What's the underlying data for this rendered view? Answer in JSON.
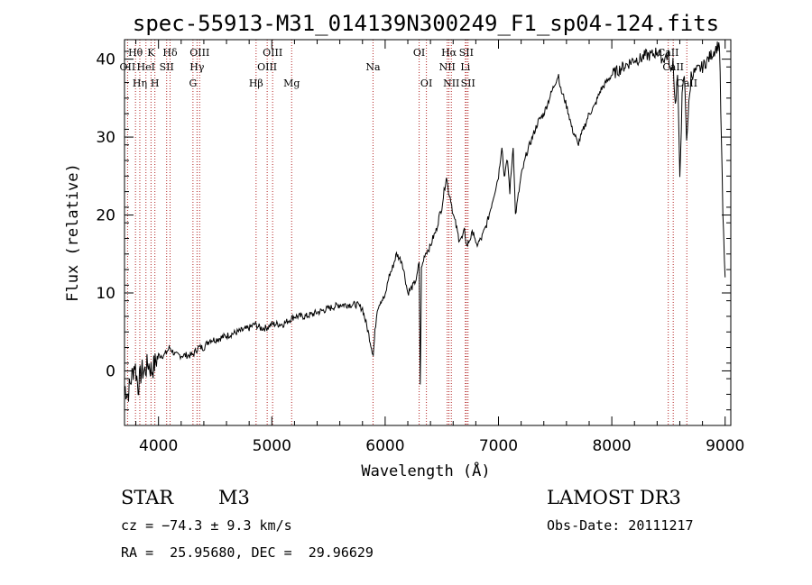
{
  "chart_data": {
    "type": "line",
    "title": "spec-55913-M31_014139N300249_F1_sp04-124.fits",
    "xlabel": "Wavelength (Å)",
    "ylabel": "Flux (relative)",
    "xlim": [
      3700,
      9050
    ],
    "ylim": [
      -7,
      42.5
    ],
    "xticks": [
      4000,
      5000,
      6000,
      7000,
      8000,
      9000
    ],
    "yticks": [
      0,
      10,
      20,
      30,
      40
    ],
    "grid": false,
    "series": [
      {
        "name": "spectrum",
        "x": [
          3700,
          3730,
          3760,
          3790,
          3820,
          3850,
          3880,
          3910,
          3940,
          3970,
          4000,
          4050,
          4100,
          4150,
          4200,
          4250,
          4300,
          4350,
          4400,
          4450,
          4500,
          4600,
          4700,
          4800,
          4850,
          4900,
          4950,
          5000,
          5050,
          5100,
          5150,
          5200,
          5300,
          5400,
          5500,
          5600,
          5700,
          5750,
          5800,
          5850,
          5880,
          5895,
          5910,
          5930,
          5960,
          6000,
          6030,
          6060,
          6100,
          6150,
          6200,
          6250,
          6280,
          6300,
          6310,
          6320,
          6350,
          6400,
          6420,
          6450,
          6480,
          6500,
          6520,
          6540,
          6560,
          6580,
          6600,
          6620,
          6650,
          6680,
          6700,
          6720,
          6750,
          6780,
          6800,
          6850,
          6900,
          6950,
          7000,
          7030,
          7050,
          7080,
          7100,
          7130,
          7150,
          7200,
          7250,
          7300,
          7350,
          7400,
          7450,
          7500,
          7530,
          7550,
          7580,
          7600,
          7620,
          7650,
          7680,
          7700,
          7750,
          7800,
          7850,
          7900,
          7950,
          8000,
          8050,
          8100,
          8150,
          8200,
          8250,
          8300,
          8350,
          8400,
          8450,
          8500,
          8520,
          8540,
          8560,
          8580,
          8600,
          8620,
          8640,
          8660,
          8680,
          8700,
          8750,
          8800,
          8850,
          8900,
          8950,
          8980,
          9000
        ],
        "y": [
          -2,
          -3,
          -1,
          1,
          -2,
          0,
          0,
          1,
          0,
          1,
          2,
          2,
          3,
          2,
          2,
          2,
          2,
          3,
          3,
          4,
          4,
          4.5,
          5,
          5.5,
          6,
          5.5,
          5.5,
          6,
          6,
          6,
          6.5,
          7,
          7,
          7.5,
          8,
          8.5,
          8.5,
          8.5,
          8,
          5,
          3,
          2,
          5,
          8,
          9,
          9.5,
          12,
          13,
          15,
          14,
          10,
          11,
          12,
          14,
          -2,
          13,
          15,
          16,
          17,
          18,
          20,
          21,
          23,
          25,
          23,
          22,
          20,
          19,
          17,
          17,
          18,
          16,
          17,
          18,
          16,
          17,
          19,
          22,
          25,
          29,
          25,
          27,
          23,
          29,
          20,
          25,
          28,
          30,
          32,
          33,
          35,
          37,
          38,
          36,
          35,
          34,
          33,
          31,
          30,
          29,
          31,
          33,
          34,
          36,
          37,
          38,
          38.5,
          39,
          39.5,
          40,
          40,
          40.5,
          40.5,
          41,
          40,
          40.5,
          38,
          40,
          34,
          38,
          25,
          35,
          38,
          30,
          34,
          38,
          38.5,
          39,
          40,
          41,
          42,
          20,
          12
        ]
      }
    ],
    "line_markers": [
      {
        "label": "Hθ",
        "x": 3797,
        "row": 1
      },
      {
        "label": "OII",
        "x": 3727,
        "row": 2
      },
      {
        "label": "Hη",
        "x": 3835,
        "row": 3
      },
      {
        "label": "K",
        "x": 3934,
        "row": 1
      },
      {
        "label": "HeI",
        "x": 3889,
        "row": 2
      },
      {
        "label": "H",
        "x": 3968,
        "row": 3
      },
      {
        "label": "SII",
        "x": 4072,
        "row": 2
      },
      {
        "label": "Hδ",
        "x": 4102,
        "row": 1
      },
      {
        "label": "OIII",
        "x": 4363,
        "row": 1
      },
      {
        "label": "Hγ",
        "x": 4340,
        "row": 2
      },
      {
        "label": "G",
        "x": 4304,
        "row": 3
      },
      {
        "label": "OIII",
        "x": 5007,
        "row": 1
      },
      {
        "label": "OIII",
        "x": 4959,
        "row": 2
      },
      {
        "label": "Hβ",
        "x": 4861,
        "row": 3
      },
      {
        "label": "Mg",
        "x": 5175,
        "row": 3
      },
      {
        "label": "Na",
        "x": 5893,
        "row": 2
      },
      {
        "label": "OI",
        "x": 6300,
        "row": 1
      },
      {
        "label": "OI",
        "x": 6364,
        "row": 3
      },
      {
        "label": "Hα",
        "x": 6563,
        "row": 1
      },
      {
        "label": "NII",
        "x": 6548,
        "row": 2
      },
      {
        "label": "NII",
        "x": 6584,
        "row": 3
      },
      {
        "label": "SII",
        "x": 6716,
        "row": 1
      },
      {
        "label": "Li",
        "x": 6708,
        "row": 2
      },
      {
        "label": "SII",
        "x": 6731,
        "row": 3
      },
      {
        "label": "CaII",
        "x": 8498,
        "row": 1
      },
      {
        "label": "CaII",
        "x": 8542,
        "row": 2
      },
      {
        "label": "CaII",
        "x": 8662,
        "row": 3
      }
    ]
  },
  "info": {
    "class": "STAR",
    "subclass": "M3",
    "cz": "cz = −74.3 ± 9.3 km/s",
    "radec": "RA =  25.95680, DEC =  29.96629",
    "survey": "LAMOST DR3",
    "obsdate": "Obs-Date: 20111217"
  },
  "colors": {
    "line_marker": "#b22222",
    "spectrum": "#000000",
    "axis": "#000000"
  }
}
